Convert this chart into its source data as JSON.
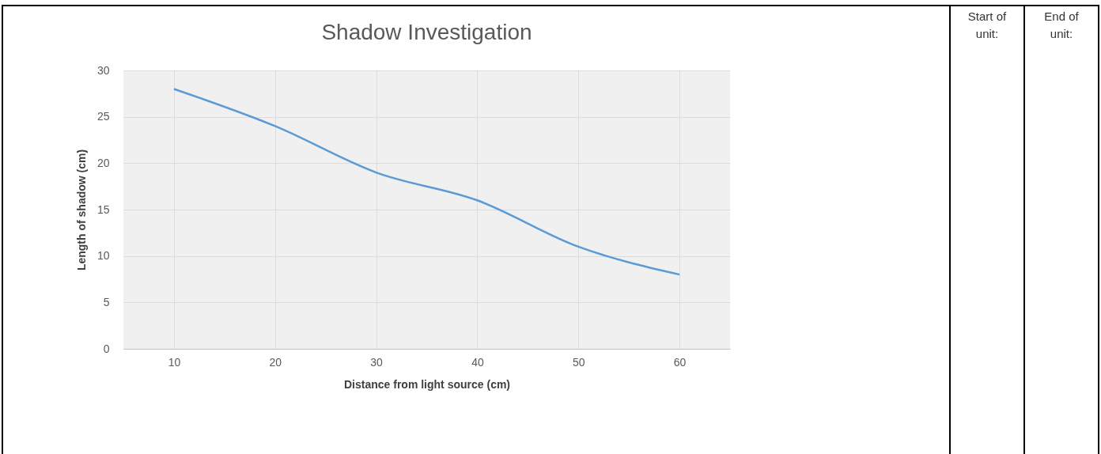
{
  "chart_data": {
    "type": "line",
    "title": "Shadow Investigation",
    "xlabel": "Distance from light source (cm)",
    "ylabel": "Length of shadow (cm)",
    "categories": [
      "10",
      "20",
      "30",
      "40",
      "50",
      "60"
    ],
    "series": [
      {
        "color": "#5b9bd5",
        "values": [
          28,
          24,
          19,
          16,
          11,
          8
        ]
      }
    ],
    "ylim": [
      0,
      30
    ],
    "yticks": [
      0,
      5,
      10,
      15,
      20,
      25,
      30
    ],
    "grid": true,
    "marker": "none",
    "annotations": [
      "Start of unit:",
      "End of unit:"
    ]
  }
}
